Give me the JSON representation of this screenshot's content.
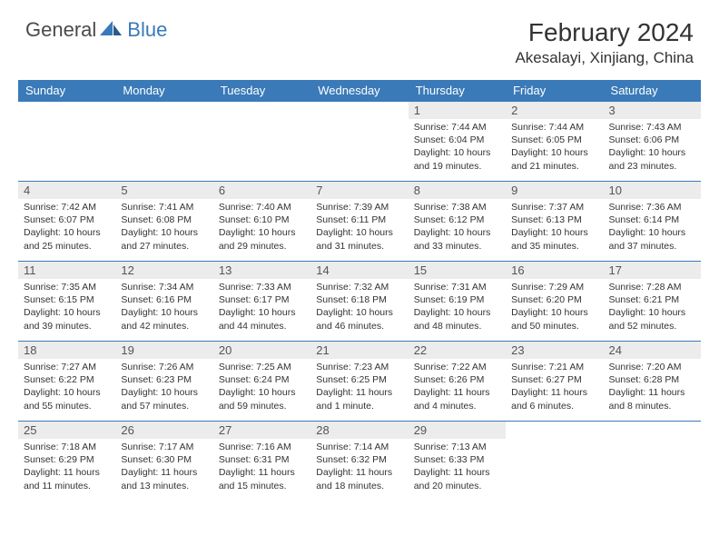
{
  "logo": {
    "text_general": "General",
    "text_blue": "Blue",
    "icon_color": "#3a7ab8"
  },
  "title": "February 2024",
  "location": "Akesalayi, Xinjiang, China",
  "header_bg": "#3a7ab8",
  "header_text_color": "#ffffff",
  "daynum_bg": "#ececec",
  "border_color": "#3a7ab8",
  "weekdays": [
    "Sunday",
    "Monday",
    "Tuesday",
    "Wednesday",
    "Thursday",
    "Friday",
    "Saturday"
  ],
  "weeks": [
    [
      null,
      null,
      null,
      null,
      {
        "n": "1",
        "sunrise": "Sunrise: 7:44 AM",
        "sunset": "Sunset: 6:04 PM",
        "daylight": "Daylight: 10 hours and 19 minutes."
      },
      {
        "n": "2",
        "sunrise": "Sunrise: 7:44 AM",
        "sunset": "Sunset: 6:05 PM",
        "daylight": "Daylight: 10 hours and 21 minutes."
      },
      {
        "n": "3",
        "sunrise": "Sunrise: 7:43 AM",
        "sunset": "Sunset: 6:06 PM",
        "daylight": "Daylight: 10 hours and 23 minutes."
      }
    ],
    [
      {
        "n": "4",
        "sunrise": "Sunrise: 7:42 AM",
        "sunset": "Sunset: 6:07 PM",
        "daylight": "Daylight: 10 hours and 25 minutes."
      },
      {
        "n": "5",
        "sunrise": "Sunrise: 7:41 AM",
        "sunset": "Sunset: 6:08 PM",
        "daylight": "Daylight: 10 hours and 27 minutes."
      },
      {
        "n": "6",
        "sunrise": "Sunrise: 7:40 AM",
        "sunset": "Sunset: 6:10 PM",
        "daylight": "Daylight: 10 hours and 29 minutes."
      },
      {
        "n": "7",
        "sunrise": "Sunrise: 7:39 AM",
        "sunset": "Sunset: 6:11 PM",
        "daylight": "Daylight: 10 hours and 31 minutes."
      },
      {
        "n": "8",
        "sunrise": "Sunrise: 7:38 AM",
        "sunset": "Sunset: 6:12 PM",
        "daylight": "Daylight: 10 hours and 33 minutes."
      },
      {
        "n": "9",
        "sunrise": "Sunrise: 7:37 AM",
        "sunset": "Sunset: 6:13 PM",
        "daylight": "Daylight: 10 hours and 35 minutes."
      },
      {
        "n": "10",
        "sunrise": "Sunrise: 7:36 AM",
        "sunset": "Sunset: 6:14 PM",
        "daylight": "Daylight: 10 hours and 37 minutes."
      }
    ],
    [
      {
        "n": "11",
        "sunrise": "Sunrise: 7:35 AM",
        "sunset": "Sunset: 6:15 PM",
        "daylight": "Daylight: 10 hours and 39 minutes."
      },
      {
        "n": "12",
        "sunrise": "Sunrise: 7:34 AM",
        "sunset": "Sunset: 6:16 PM",
        "daylight": "Daylight: 10 hours and 42 minutes."
      },
      {
        "n": "13",
        "sunrise": "Sunrise: 7:33 AM",
        "sunset": "Sunset: 6:17 PM",
        "daylight": "Daylight: 10 hours and 44 minutes."
      },
      {
        "n": "14",
        "sunrise": "Sunrise: 7:32 AM",
        "sunset": "Sunset: 6:18 PM",
        "daylight": "Daylight: 10 hours and 46 minutes."
      },
      {
        "n": "15",
        "sunrise": "Sunrise: 7:31 AM",
        "sunset": "Sunset: 6:19 PM",
        "daylight": "Daylight: 10 hours and 48 minutes."
      },
      {
        "n": "16",
        "sunrise": "Sunrise: 7:29 AM",
        "sunset": "Sunset: 6:20 PM",
        "daylight": "Daylight: 10 hours and 50 minutes."
      },
      {
        "n": "17",
        "sunrise": "Sunrise: 7:28 AM",
        "sunset": "Sunset: 6:21 PM",
        "daylight": "Daylight: 10 hours and 52 minutes."
      }
    ],
    [
      {
        "n": "18",
        "sunrise": "Sunrise: 7:27 AM",
        "sunset": "Sunset: 6:22 PM",
        "daylight": "Daylight: 10 hours and 55 minutes."
      },
      {
        "n": "19",
        "sunrise": "Sunrise: 7:26 AM",
        "sunset": "Sunset: 6:23 PM",
        "daylight": "Daylight: 10 hours and 57 minutes."
      },
      {
        "n": "20",
        "sunrise": "Sunrise: 7:25 AM",
        "sunset": "Sunset: 6:24 PM",
        "daylight": "Daylight: 10 hours and 59 minutes."
      },
      {
        "n": "21",
        "sunrise": "Sunrise: 7:23 AM",
        "sunset": "Sunset: 6:25 PM",
        "daylight": "Daylight: 11 hours and 1 minute."
      },
      {
        "n": "22",
        "sunrise": "Sunrise: 7:22 AM",
        "sunset": "Sunset: 6:26 PM",
        "daylight": "Daylight: 11 hours and 4 minutes."
      },
      {
        "n": "23",
        "sunrise": "Sunrise: 7:21 AM",
        "sunset": "Sunset: 6:27 PM",
        "daylight": "Daylight: 11 hours and 6 minutes."
      },
      {
        "n": "24",
        "sunrise": "Sunrise: 7:20 AM",
        "sunset": "Sunset: 6:28 PM",
        "daylight": "Daylight: 11 hours and 8 minutes."
      }
    ],
    [
      {
        "n": "25",
        "sunrise": "Sunrise: 7:18 AM",
        "sunset": "Sunset: 6:29 PM",
        "daylight": "Daylight: 11 hours and 11 minutes."
      },
      {
        "n": "26",
        "sunrise": "Sunrise: 7:17 AM",
        "sunset": "Sunset: 6:30 PM",
        "daylight": "Daylight: 11 hours and 13 minutes."
      },
      {
        "n": "27",
        "sunrise": "Sunrise: 7:16 AM",
        "sunset": "Sunset: 6:31 PM",
        "daylight": "Daylight: 11 hours and 15 minutes."
      },
      {
        "n": "28",
        "sunrise": "Sunrise: 7:14 AM",
        "sunset": "Sunset: 6:32 PM",
        "daylight": "Daylight: 11 hours and 18 minutes."
      },
      {
        "n": "29",
        "sunrise": "Sunrise: 7:13 AM",
        "sunset": "Sunset: 6:33 PM",
        "daylight": "Daylight: 11 hours and 20 minutes."
      },
      null,
      null
    ]
  ]
}
